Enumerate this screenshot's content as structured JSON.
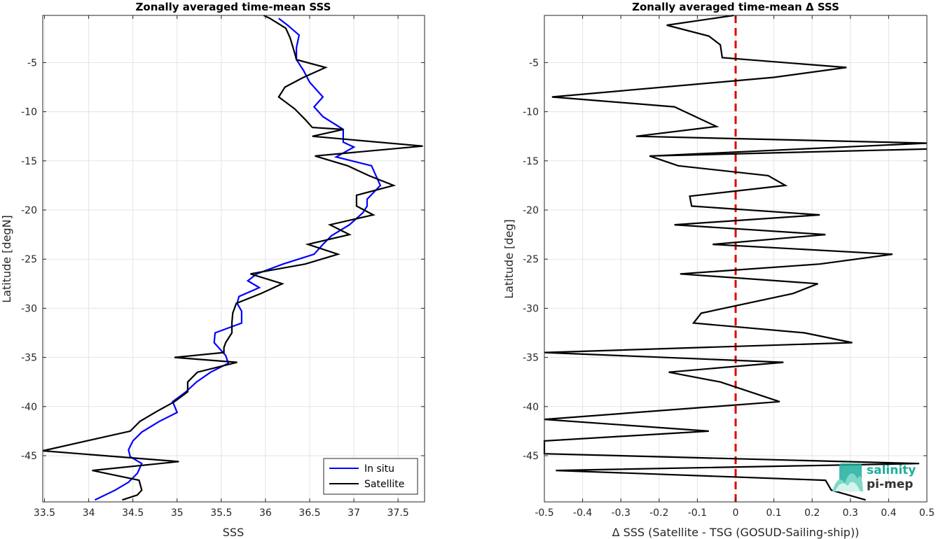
{
  "chart_data": [
    {
      "type": "line",
      "title": "Zonally averaged time-mean SSS",
      "xlabel": "SSS",
      "ylabel": "Latitude [degN]",
      "xlim": [
        33.48,
        37.8
      ],
      "ylim": [
        -49.7,
        -0.2
      ],
      "x_ticks": [
        33.5,
        34,
        34.5,
        35,
        35.5,
        36,
        36.5,
        37,
        37.5
      ],
      "x_tick_labels": [
        "33.5",
        "34",
        "34.5",
        "35",
        "35.5",
        "36",
        "36.5",
        "37",
        "37.5"
      ],
      "y_ticks": [
        -5,
        -10,
        -15,
        -20,
        -25,
        -30,
        -35,
        -40,
        -45
      ],
      "y_tick_labels": [
        "-5",
        "-10",
        "-15",
        "-20",
        "-25",
        "-30",
        "-35",
        "-40",
        "-45"
      ],
      "grid": true,
      "legend_position": "bottom-right",
      "series": [
        {
          "name": "In situ",
          "color": "#0000ff",
          "x": [
            36.15,
            36.25,
            36.38,
            36.35,
            36.35,
            36.43,
            36.5,
            36.65,
            36.55,
            36.65,
            36.88,
            36.88,
            37.0,
            36.8,
            37.2,
            37.25,
            37.3,
            37.15,
            37.15,
            37.1,
            36.95,
            36.75,
            36.65,
            36.55,
            36.2,
            35.9,
            35.8,
            35.93,
            35.7,
            35.68,
            35.73,
            35.73,
            35.43,
            35.42,
            35.55,
            35.58,
            35.38,
            35.22,
            35.1,
            34.95,
            35.0,
            34.8,
            34.6,
            34.5,
            34.45,
            34.47,
            34.6,
            34.55,
            34.45,
            34.3,
            34.07
          ],
          "y": [
            -0.5,
            -1.2,
            -2.2,
            -3.5,
            -4.7,
            -5.8,
            -7.0,
            -8.5,
            -9.5,
            -10.5,
            -11.8,
            -13.1,
            -13.6,
            -14.6,
            -15.5,
            -16.5,
            -17.5,
            -18.9,
            -19.6,
            -20.3,
            -21.5,
            -22.6,
            -23.5,
            -24.5,
            -25.5,
            -26.5,
            -27.2,
            -27.9,
            -28.8,
            -29.5,
            -30.3,
            -31.5,
            -32.5,
            -33.5,
            -34.8,
            -35.6,
            -36.5,
            -37.5,
            -38.5,
            -39.5,
            -40.6,
            -41.5,
            -42.6,
            -43.5,
            -44.4,
            -45.1,
            -45.8,
            -46.8,
            -47.7,
            -48.5,
            -49.5
          ]
        },
        {
          "name": "Satellite",
          "color": "#000000",
          "x": [
            35.98,
            36.05,
            36.23,
            36.28,
            36.33,
            36.35,
            36.68,
            36.43,
            36.22,
            36.15,
            36.33,
            36.45,
            36.53,
            36.88,
            36.53,
            37.78,
            36.56,
            36.93,
            37.17,
            37.45,
            37.03,
            37.03,
            37.22,
            36.73,
            36.95,
            36.48,
            36.82,
            36.45,
            35.83,
            36.19,
            35.95,
            35.67,
            35.63,
            35.62,
            35.62,
            35.55,
            35.53,
            35.53,
            34.97,
            35.68,
            35.23,
            35.12,
            35.12,
            34.97,
            34.77,
            34.58,
            34.47,
            33.48,
            35.02,
            34.04,
            34.57,
            34.6,
            34.55,
            34.38
          ],
          "y": [
            -0.2,
            -0.5,
            -1.5,
            -2.5,
            -4.0,
            -4.7,
            -5.5,
            -6.5,
            -7.5,
            -8.5,
            -9.7,
            -10.8,
            -11.6,
            -11.8,
            -12.5,
            -13.5,
            -14.5,
            -15.5,
            -16.5,
            -17.5,
            -18.5,
            -19.6,
            -20.5,
            -21.5,
            -22.5,
            -23.5,
            -24.5,
            -25.5,
            -26.5,
            -27.5,
            -28.5,
            -29.5,
            -30.5,
            -31.5,
            -32.5,
            -33.5,
            -34.0,
            -34.5,
            -35.0,
            -35.5,
            -36.5,
            -37.5,
            -38.5,
            -39.5,
            -40.5,
            -41.5,
            -42.5,
            -44.5,
            -45.6,
            -46.5,
            -47.5,
            -48.5,
            -49.0,
            -49.5
          ]
        }
      ]
    },
    {
      "type": "line",
      "title": "Zonally averaged time-mean Δ SSS",
      "xlabel": "Δ SSS (Satellite - TSG (GOSUD-Sailing-ship))",
      "ylabel": "Latitude [deg]",
      "xlim": [
        -0.5,
        0.5
      ],
      "ylim": [
        -49.7,
        -0.2
      ],
      "x_ticks": [
        -0.5,
        -0.4,
        -0.3,
        -0.2,
        -0.1,
        0,
        0.1,
        0.2,
        0.3,
        0.4,
        0.5
      ],
      "x_tick_labels": [
        "-0.5",
        "-0.4",
        "-0.3",
        "-0.2",
        "-0.1",
        "0",
        "0.1",
        "0.2",
        "0.3",
        "0.4",
        "0.5"
      ],
      "y_ticks": [
        -5,
        -10,
        -15,
        -20,
        -25,
        -30,
        -35,
        -40,
        -45
      ],
      "y_tick_labels": [
        "-5",
        "-10",
        "-15",
        "-20",
        "-25",
        "-30",
        "-35",
        "-40",
        "-45"
      ],
      "grid": true,
      "reference_line": {
        "x": 0,
        "color": "#e00000",
        "style": "dashed"
      },
      "series": [
        {
          "color": "#000000",
          "x": [
            -0.005,
            -0.18,
            -0.07,
            -0.04,
            -0.035,
            0.29,
            0.1,
            -0.48,
            -0.16,
            -0.05,
            -0.26,
            0.5,
            -0.22,
            0.5,
            -0.225,
            -0.15,
            0.085,
            0.13,
            -0.12,
            -0.115,
            0.22,
            -0.16,
            0.235,
            -0.06,
            0.41,
            0.22,
            -0.145,
            0.215,
            0.15,
            -0.09,
            -0.11,
            0.18,
            0.305,
            -0.5,
            0.125,
            -0.175,
            -0.04,
            0.115,
            -0.5,
            -0.07,
            -0.5,
            -0.5,
            0.48,
            -0.47,
            0.235,
            0.25,
            0.34
          ],
          "y": [
            -0.2,
            -1.2,
            -2.3,
            -3.2,
            -4.5,
            -5.5,
            -6.5,
            -8.5,
            -9.5,
            -11.5,
            -12.5,
            -13.2,
            -14.5,
            -13.8,
            -14.5,
            -15.5,
            -16.5,
            -17.5,
            -18.6,
            -19.6,
            -20.5,
            -21.5,
            -22.5,
            -23.5,
            -24.5,
            -25.5,
            -26.5,
            -27.5,
            -28.5,
            -30.5,
            -31.5,
            -32.5,
            -33.5,
            -34.5,
            -35.5,
            -36.5,
            -37.5,
            -39.5,
            -41.3,
            -42.5,
            -43.5,
            -44.8,
            -45.8,
            -46.5,
            -47.5,
            -48.5,
            -49.5
          ]
        }
      ]
    }
  ],
  "legend": {
    "items": [
      "In situ",
      "Satellite"
    ]
  },
  "logo": {
    "line1": "salinity",
    "line2": "pi-mep"
  }
}
